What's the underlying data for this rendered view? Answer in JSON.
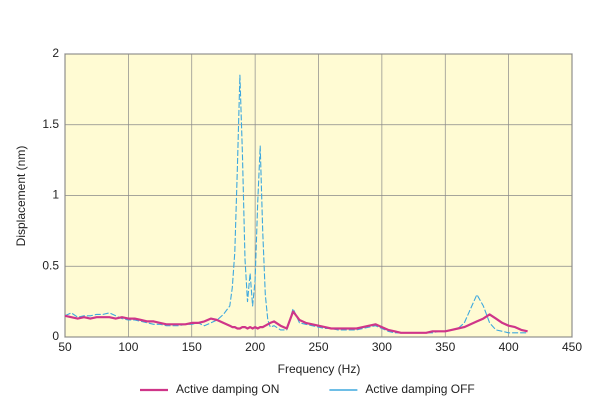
{
  "chart_data": {
    "type": "line",
    "x_label": "Frequency (Hz)",
    "y_label": "Displacement (nm)",
    "x": [
      50,
      55,
      60,
      65,
      70,
      75,
      80,
      85,
      90,
      95,
      100,
      105,
      110,
      115,
      120,
      125,
      130,
      135,
      140,
      145,
      150,
      155,
      160,
      165,
      170,
      175,
      180,
      182,
      184,
      186,
      188,
      190,
      192,
      194,
      196,
      198,
      200,
      202,
      204,
      206,
      208,
      210,
      212,
      215,
      220,
      225,
      230,
      235,
      240,
      245,
      250,
      255,
      260,
      265,
      270,
      275,
      280,
      285,
      290,
      295,
      300,
      305,
      310,
      315,
      320,
      325,
      330,
      335,
      340,
      345,
      350,
      355,
      360,
      365,
      370,
      375,
      380,
      385,
      390,
      395,
      400,
      405,
      410,
      415
    ],
    "series": [
      {
        "name": "Active damping OFF",
        "color": "#3ea8de",
        "dashed": true,
        "values": [
          0.15,
          0.17,
          0.14,
          0.15,
          0.15,
          0.16,
          0.16,
          0.17,
          0.15,
          0.13,
          0.12,
          0.12,
          0.11,
          0.1,
          0.09,
          0.09,
          0.08,
          0.08,
          0.08,
          0.09,
          0.09,
          0.1,
          0.08,
          0.1,
          0.12,
          0.16,
          0.22,
          0.35,
          0.6,
          1.2,
          1.85,
          1.3,
          0.55,
          0.25,
          0.45,
          0.22,
          0.4,
          0.95,
          1.35,
          0.75,
          0.3,
          0.12,
          0.07,
          0.08,
          0.05,
          0.05,
          0.2,
          0.1,
          0.09,
          0.08,
          0.07,
          0.06,
          0.06,
          0.05,
          0.05,
          0.05,
          0.05,
          0.06,
          0.07,
          0.08,
          0.06,
          0.04,
          0.03,
          0.03,
          0.03,
          0.03,
          0.03,
          0.03,
          0.03,
          0.04,
          0.04,
          0.05,
          0.06,
          0.1,
          0.2,
          0.3,
          0.22,
          0.1,
          0.05,
          0.04,
          0.03,
          0.03,
          0.03,
          0.03
        ]
      },
      {
        "name": "Active damping ON",
        "color": "#cf3589",
        "dashed": false,
        "values": [
          0.15,
          0.14,
          0.13,
          0.14,
          0.13,
          0.14,
          0.14,
          0.14,
          0.13,
          0.14,
          0.13,
          0.13,
          0.12,
          0.11,
          0.11,
          0.1,
          0.09,
          0.09,
          0.09,
          0.09,
          0.1,
          0.1,
          0.11,
          0.13,
          0.12,
          0.1,
          0.08,
          0.07,
          0.07,
          0.06,
          0.06,
          0.07,
          0.07,
          0.06,
          0.07,
          0.06,
          0.07,
          0.06,
          0.07,
          0.07,
          0.08,
          0.09,
          0.1,
          0.11,
          0.08,
          0.06,
          0.18,
          0.12,
          0.1,
          0.09,
          0.08,
          0.07,
          0.06,
          0.06,
          0.06,
          0.06,
          0.06,
          0.07,
          0.08,
          0.09,
          0.07,
          0.05,
          0.04,
          0.03,
          0.03,
          0.03,
          0.03,
          0.03,
          0.04,
          0.04,
          0.04,
          0.05,
          0.06,
          0.07,
          0.09,
          0.11,
          0.13,
          0.16,
          0.13,
          0.1,
          0.08,
          0.07,
          0.05,
          0.04
        ]
      }
    ],
    "legend_order": [
      1,
      0
    ],
    "xlim": [
      50,
      450
    ],
    "xticks": [
      50,
      100,
      150,
      200,
      250,
      300,
      350,
      400,
      450
    ],
    "ylim": [
      0,
      2
    ],
    "yticks": [
      0,
      0.5,
      1,
      1.5,
      2
    ],
    "grid": true,
    "background": "#fffbd3"
  }
}
